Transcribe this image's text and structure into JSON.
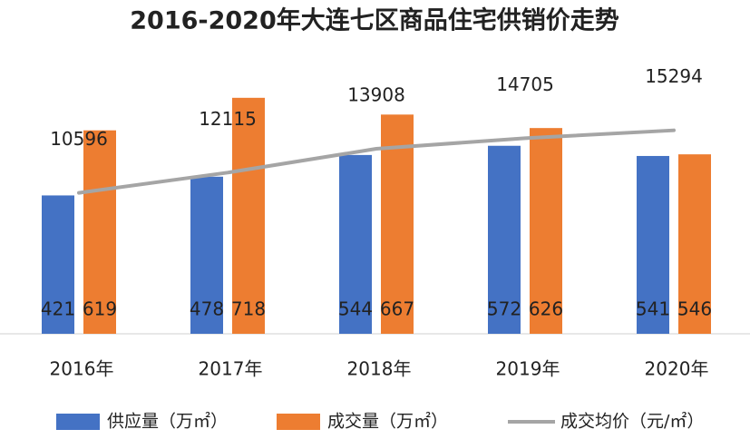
{
  "chart_data": {
    "type": "bar",
    "title": "2016-2020年大连七区商品住宅供销价走势",
    "categories": [
      "2016年",
      "2017年",
      "2018年",
      "2019年",
      "2020年"
    ],
    "series": [
      {
        "name": "供应量（万㎡）",
        "color": "#4472c4",
        "values": [
          421,
          478,
          544,
          572,
          541
        ]
      },
      {
        "name": "成交量（万㎡）",
        "color": "#ed7d31",
        "values": [
          619,
          718,
          667,
          626,
          546
        ]
      },
      {
        "name": "成交均价（元/㎡）",
        "color": "#a5a5a5",
        "type": "line",
        "axis": "y2",
        "values": [
          10596,
          12115,
          13908,
          14705,
          15294
        ]
      }
    ],
    "ylim": [
      0,
      850
    ],
    "y2lim": [
      0,
      21000
    ],
    "legend": "bottom"
  }
}
